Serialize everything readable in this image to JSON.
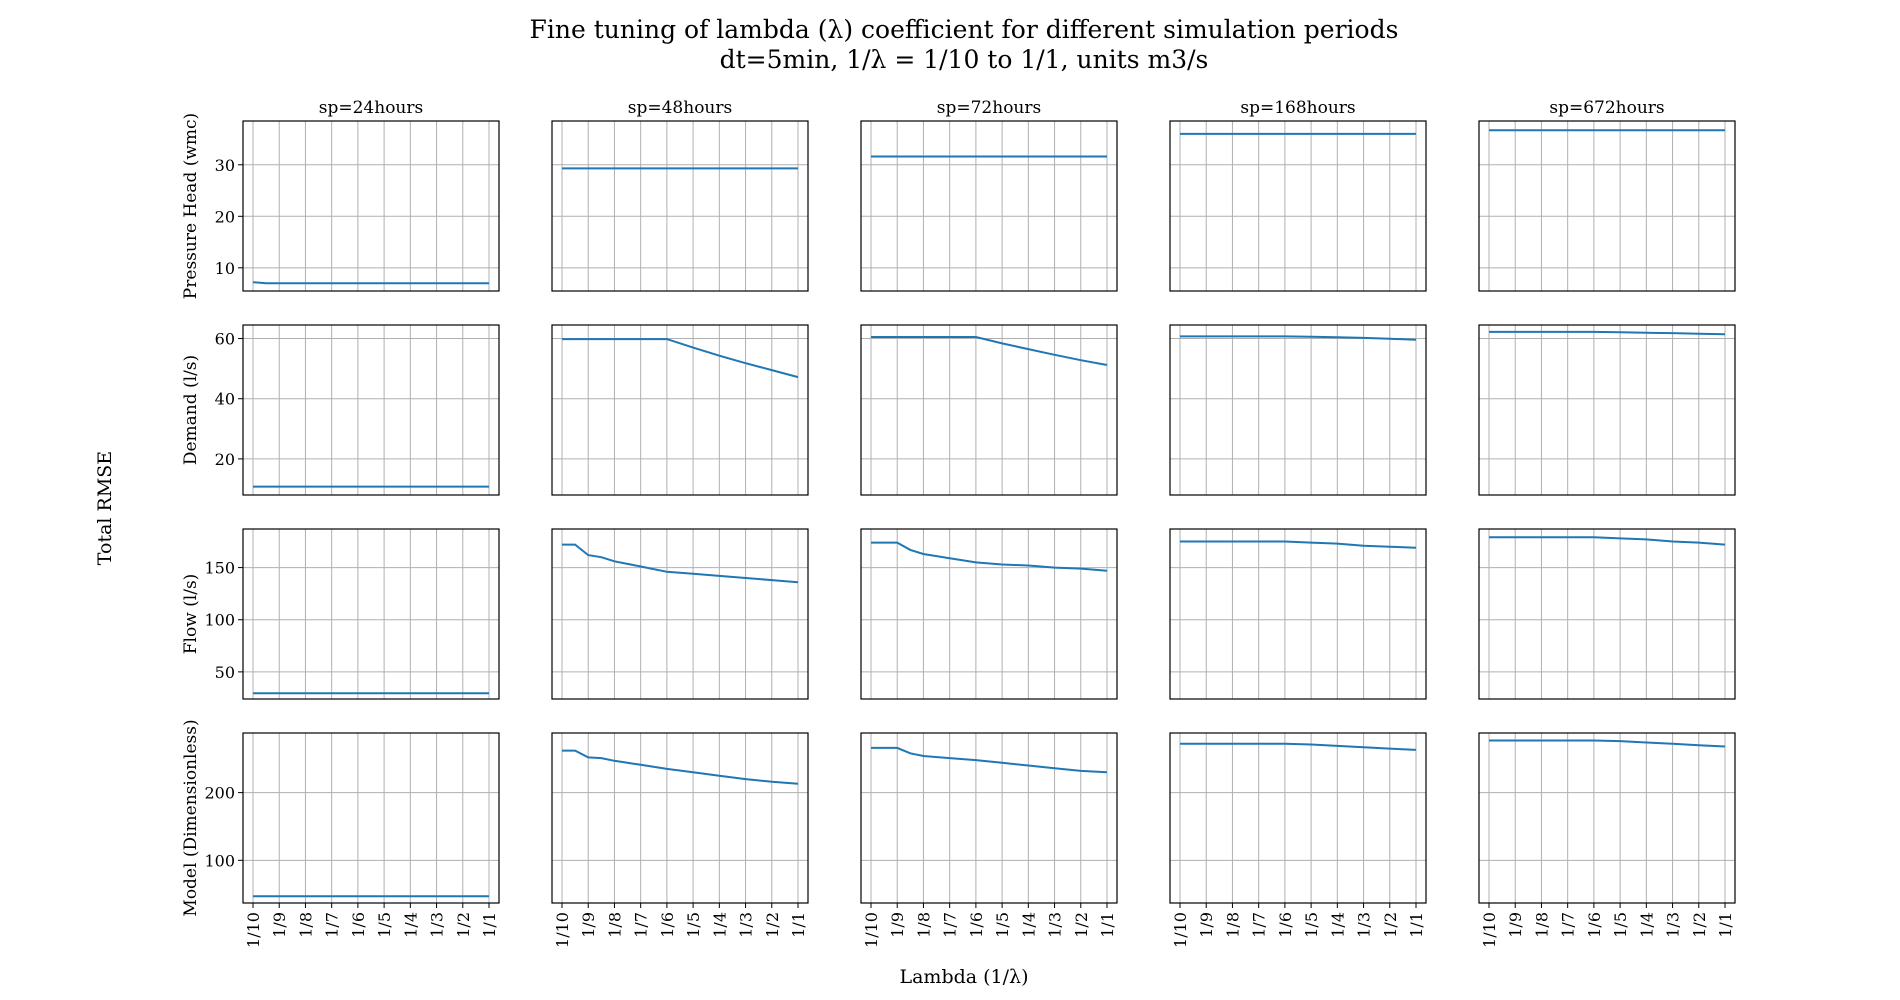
{
  "chart_data": {
    "type": "line",
    "title": "Fine tuning of lambda (λ) coefficient for different simulation periods",
    "subtitle": "dt=5min, 1/λ = 1/10 to 1/1, units m3/s",
    "xlabel": "Lambda (1/λ)",
    "ylabel": "Total RMSE",
    "grid": true,
    "x_categories": [
      "1/10",
      "1/9",
      "1/8",
      "1/7",
      "1/6",
      "1/5",
      "1/4",
      "1/3",
      "1/2",
      "1/1"
    ],
    "x_points": [
      "1/10",
      "1/9.5",
      "1/9",
      "1/8.5",
      "1/8",
      "1/7",
      "1/6",
      "1/5",
      "1/4",
      "1/3",
      "1/2",
      "1/1"
    ],
    "x_positions": [
      0,
      0.5,
      1,
      1.5,
      2,
      3,
      4,
      5,
      6,
      7,
      8,
      9
    ],
    "columns": [
      "sp=24hours",
      "sp=48hours",
      "sp=72hours",
      "sp=168hours",
      "sp=672hours"
    ],
    "rows": [
      {
        "ylabel": "Pressure Head (wmc)",
        "ylim": [
          5.5,
          38.5
        ],
        "yticks": [
          10,
          20,
          30
        ],
        "series": [
          [
            7.2,
            7.0,
            7.0,
            7.0,
            7.0,
            7.0,
            7.0,
            7.0,
            7.0,
            7.0,
            7.0,
            7.0
          ],
          [
            29.3,
            29.3,
            29.3,
            29.3,
            29.3,
            29.3,
            29.3,
            29.3,
            29.3,
            29.3,
            29.3,
            29.3
          ],
          [
            31.6,
            31.6,
            31.6,
            31.6,
            31.6,
            31.6,
            31.6,
            31.6,
            31.6,
            31.6,
            31.6,
            31.6
          ],
          [
            36.0,
            36.0,
            36.0,
            36.0,
            36.0,
            36.0,
            36.0,
            36.0,
            36.0,
            36.0,
            36.0,
            36.0
          ],
          [
            36.7,
            36.7,
            36.7,
            36.7,
            36.7,
            36.7,
            36.7,
            36.7,
            36.7,
            36.7,
            36.7,
            36.7
          ]
        ]
      },
      {
        "ylabel": "Demand (l/s)",
        "ylim": [
          8,
          64.5
        ],
        "yticks": [
          20,
          40,
          60
        ],
        "series": [
          [
            10.8,
            10.8,
            10.8,
            10.8,
            10.8,
            10.8,
            10.8,
            10.8,
            10.8,
            10.8,
            10.8,
            10.8
          ],
          [
            59.8,
            59.8,
            59.8,
            59.8,
            59.8,
            59.8,
            59.8,
            57.0,
            54.3,
            51.8,
            49.5,
            47.2
          ],
          [
            60.5,
            60.5,
            60.5,
            60.5,
            60.5,
            60.5,
            60.5,
            58.4,
            56.5,
            54.6,
            52.8,
            51.2
          ],
          [
            60.7,
            60.7,
            60.7,
            60.7,
            60.7,
            60.7,
            60.7,
            60.6,
            60.4,
            60.2,
            59.9,
            59.6
          ],
          [
            62.2,
            62.2,
            62.2,
            62.2,
            62.2,
            62.2,
            62.2,
            62.1,
            61.9,
            61.8,
            61.6,
            61.4
          ]
        ]
      },
      {
        "ylabel": "Flow (l/s)",
        "ylim": [
          24,
          187
        ],
        "yticks": [
          50,
          100,
          150
        ],
        "series": [
          [
            29.5,
            29.5,
            29.5,
            29.5,
            29.5,
            29.5,
            29.5,
            29.5,
            29.5,
            29.5,
            29.5,
            29.5
          ],
          [
            172,
            172,
            162,
            160,
            156,
            151,
            146,
            144,
            142,
            140,
            138,
            136
          ],
          [
            174,
            174,
            174,
            167,
            163,
            159,
            155,
            153,
            152,
            150,
            149,
            147
          ],
          [
            175,
            175,
            175,
            175,
            175,
            175,
            175,
            174,
            173,
            171,
            170,
            169
          ],
          [
            179,
            179,
            179,
            179,
            179,
            179,
            179,
            178,
            177,
            175,
            174,
            172
          ]
        ]
      },
      {
        "ylabel": "Model (Dimensionless)",
        "ylim": [
          37,
          288
        ],
        "yticks": [
          100,
          200
        ],
        "series": [
          [
            47,
            47,
            47,
            47,
            47,
            47,
            47,
            47,
            47,
            47,
            47,
            47
          ],
          [
            262,
            262,
            252,
            251,
            247,
            241,
            235,
            230,
            225,
            220,
            216,
            213
          ],
          [
            266,
            266,
            266,
            258,
            254,
            251,
            248,
            244,
            240,
            236,
            232,
            230
          ],
          [
            272,
            272,
            272,
            272,
            272,
            272,
            272,
            271,
            269,
            267,
            265,
            263
          ],
          [
            277,
            277,
            277,
            277,
            277,
            277,
            277,
            276,
            274,
            272,
            270,
            268
          ]
        ]
      }
    ]
  }
}
